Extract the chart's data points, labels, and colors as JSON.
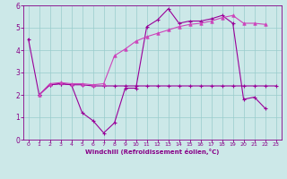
{
  "line1_x": [
    0,
    1,
    2,
    3,
    4,
    5,
    6,
    7,
    8,
    9,
    10,
    11,
    12,
    13,
    14,
    15,
    16,
    17,
    18,
    19,
    20,
    21,
    22,
    23
  ],
  "line1_y": [
    4.5,
    2.0,
    2.45,
    2.5,
    2.45,
    2.45,
    2.4,
    2.4,
    2.4,
    2.4,
    2.4,
    2.4,
    2.4,
    2.4,
    2.4,
    2.4,
    2.4,
    2.4,
    2.4,
    2.4,
    2.4,
    2.4,
    2.4,
    2.4
  ],
  "line2_x": [
    1,
    2,
    3,
    4,
    5,
    6,
    7,
    8,
    9,
    10,
    11,
    12,
    13,
    14,
    15,
    16,
    17,
    18,
    19,
    20,
    21,
    22
  ],
  "line2_y": [
    2.0,
    2.45,
    2.5,
    2.45,
    1.2,
    0.85,
    0.3,
    0.75,
    2.3,
    2.3,
    5.05,
    5.35,
    5.85,
    5.2,
    5.3,
    5.3,
    5.4,
    5.55,
    5.2,
    1.8,
    1.9,
    1.4
  ],
  "line3_x": [
    1,
    2,
    3,
    4,
    5,
    6,
    7,
    8,
    9,
    10,
    11,
    12,
    13,
    14,
    15,
    16,
    17,
    18,
    19,
    20,
    21,
    22
  ],
  "line3_y": [
    2.0,
    2.5,
    2.55,
    2.5,
    2.5,
    2.45,
    2.5,
    3.75,
    4.05,
    4.4,
    4.6,
    4.75,
    4.9,
    5.05,
    5.15,
    5.2,
    5.3,
    5.45,
    5.55,
    5.2,
    5.2,
    5.15
  ],
  "color1": "#990099",
  "color2": "#990099",
  "color3": "#cc44bb",
  "xlabel": "Windchill (Refroidissement éolien,°C)",
  "xlim_min": -0.5,
  "xlim_max": 23.5,
  "ylim_min": 0,
  "ylim_max": 6,
  "yticks": [
    0,
    1,
    2,
    3,
    4,
    5,
    6
  ],
  "xticks": [
    0,
    1,
    2,
    3,
    4,
    5,
    6,
    7,
    8,
    9,
    10,
    11,
    12,
    13,
    14,
    15,
    16,
    17,
    18,
    19,
    20,
    21,
    22,
    23
  ],
  "bg_color": "#cce8e8",
  "grid_color": "#99cccc",
  "text_color": "#880088",
  "spine_color": "#880088"
}
